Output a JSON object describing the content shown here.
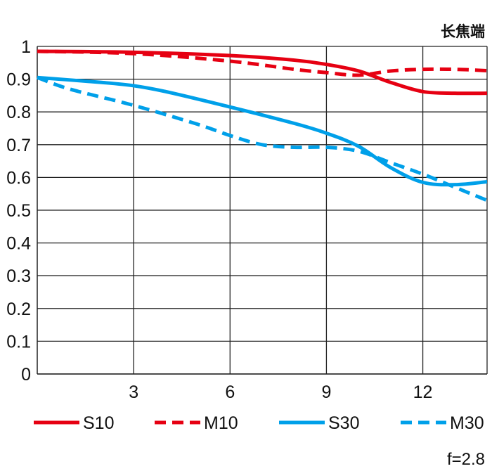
{
  "chart_data": {
    "type": "line",
    "title": "长焦端",
    "annotation": "f=2.8",
    "xlabel": "",
    "ylabel": "",
    "xlim": [
      0,
      14
    ],
    "ylim": [
      0,
      1
    ],
    "xticks": [
      3,
      6,
      9,
      12
    ],
    "xtick_labels": [
      "3",
      "6",
      "9",
      "12"
    ],
    "yticks": [
      0,
      0.1,
      0.2,
      0.3,
      0.4,
      0.5,
      0.6,
      0.7,
      0.8,
      0.9,
      1
    ],
    "ytick_labels": [
      "0",
      "0.1",
      "0.2",
      "0.3",
      "0.4",
      "0.5",
      "0.6",
      "0.7",
      "0.8",
      "0.9",
      "1"
    ],
    "grid": true,
    "legend_position": "bottom",
    "series": [
      {
        "name": "S10",
        "color": "#e60012",
        "dashed": false,
        "x": [
          0,
          3,
          6,
          8,
          9,
          10,
          11,
          12,
          13,
          14
        ],
        "y": [
          0.985,
          0.982,
          0.972,
          0.958,
          0.945,
          0.925,
          0.89,
          0.862,
          0.857,
          0.857
        ]
      },
      {
        "name": "M10",
        "color": "#e60012",
        "dashed": true,
        "x": [
          0,
          3,
          6,
          8,
          9,
          10,
          11,
          12,
          13,
          14
        ],
        "y": [
          0.985,
          0.978,
          0.955,
          0.93,
          0.92,
          0.912,
          0.925,
          0.93,
          0.93,
          0.926
        ]
      },
      {
        "name": "S30",
        "color": "#00a0e9",
        "dashed": false,
        "x": [
          0,
          2,
          3,
          4,
          6,
          8,
          9,
          10,
          11,
          12,
          13,
          14
        ],
        "y": [
          0.905,
          0.89,
          0.88,
          0.862,
          0.815,
          0.765,
          0.735,
          0.695,
          0.63,
          0.585,
          0.578,
          0.587
        ]
      },
      {
        "name": "M30",
        "color": "#00a0e9",
        "dashed": true,
        "x": [
          0,
          1,
          3,
          5,
          6,
          7,
          8,
          9,
          10,
          11,
          12,
          13,
          14
        ],
        "y": [
          0.905,
          0.87,
          0.82,
          0.762,
          0.728,
          0.7,
          0.692,
          0.692,
          0.68,
          0.645,
          0.61,
          0.57,
          0.53
        ]
      }
    ]
  }
}
